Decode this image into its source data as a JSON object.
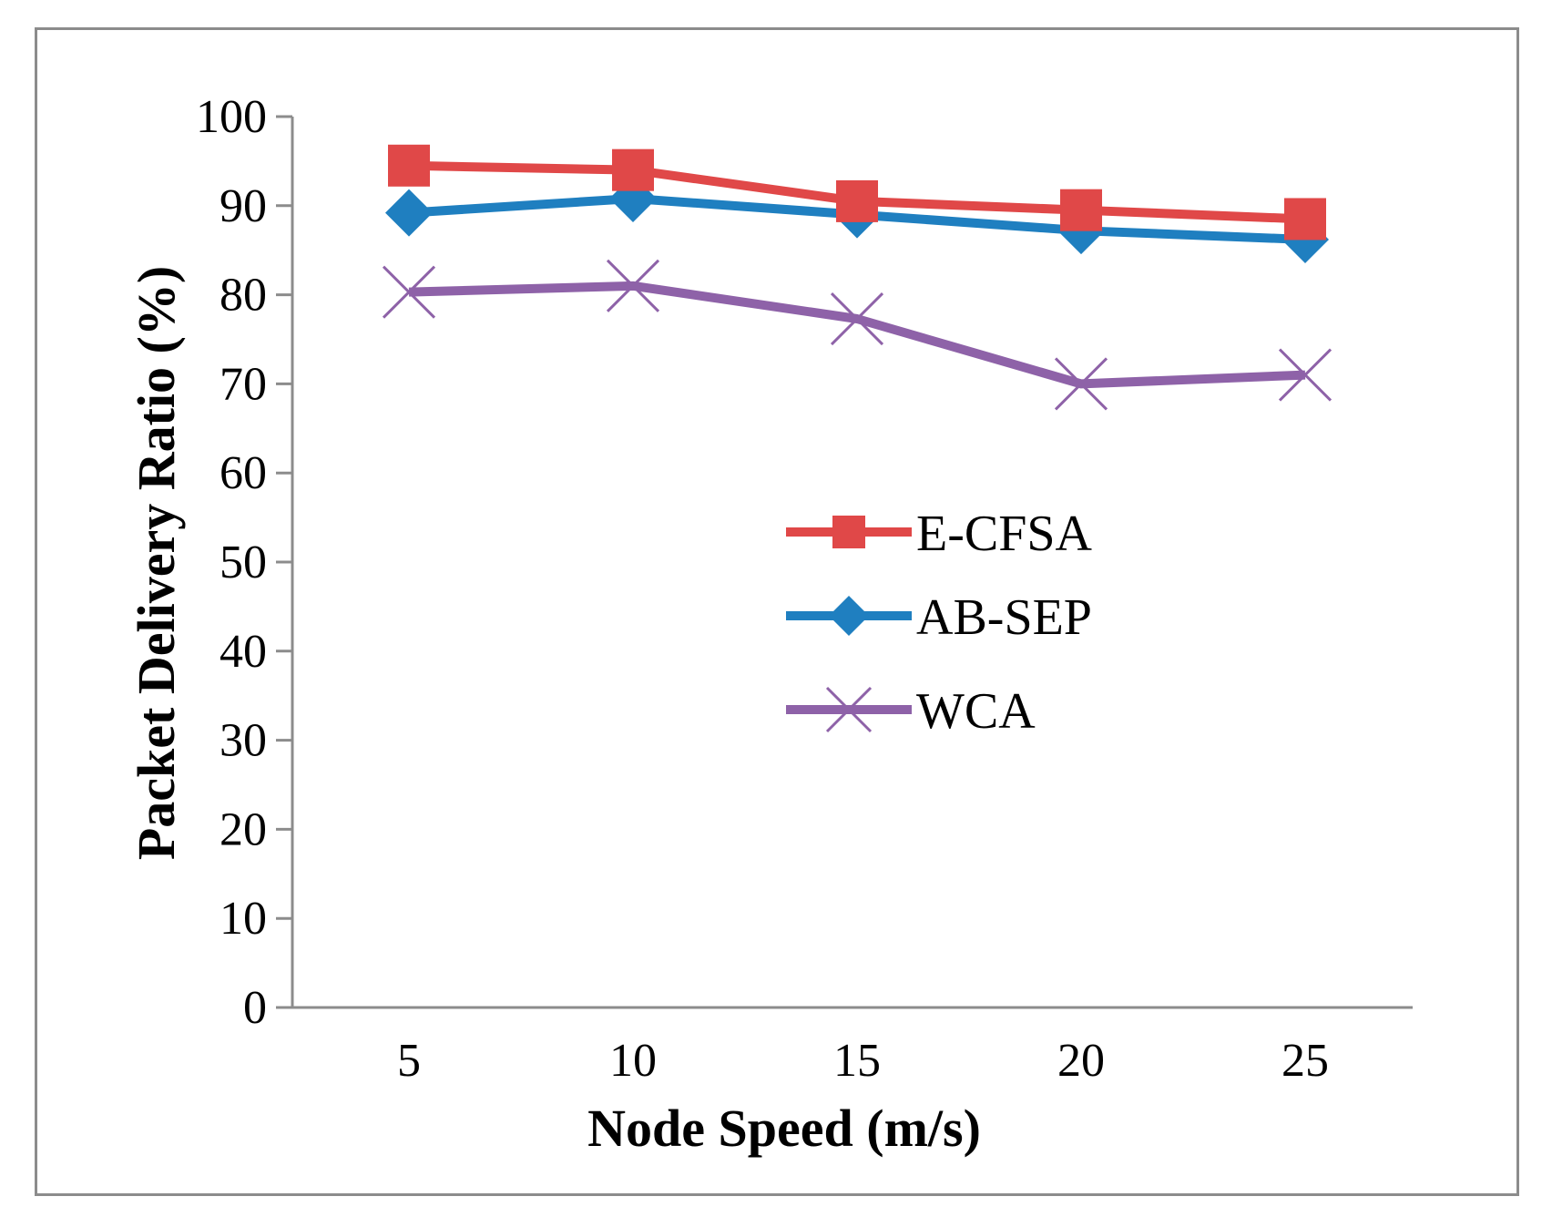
{
  "chart_data": {
    "type": "line",
    "title": "",
    "xlabel": "Node Speed (m/s)",
    "ylabel": "Packet Delivery Ratio (%)",
    "categories": [
      "5",
      "10",
      "15",
      "20",
      "25"
    ],
    "ylim": [
      0,
      100
    ],
    "yticks": [
      0,
      10,
      20,
      30,
      40,
      50,
      60,
      70,
      80,
      90,
      100
    ],
    "ytick_labels": [
      "0",
      "10",
      "20",
      "30",
      "40",
      "50",
      "60",
      "70",
      "80",
      "90",
      "100"
    ],
    "grid": false,
    "legend_position": "center-right",
    "series": [
      {
        "name": "E-CFSA",
        "marker": "square",
        "color": "#e04848",
        "values": [
          94.5,
          94,
          90.5,
          89.5,
          88.5
        ]
      },
      {
        "name": "AB-SEP",
        "marker": "diamond",
        "color": "#1f7fc0",
        "values": [
          89.2,
          90.8,
          89,
          87.2,
          86.2
        ]
      },
      {
        "name": "WCA",
        "marker": "x",
        "color": "#8e62a8",
        "values": [
          80.3,
          81,
          77.3,
          70,
          71
        ]
      }
    ]
  }
}
